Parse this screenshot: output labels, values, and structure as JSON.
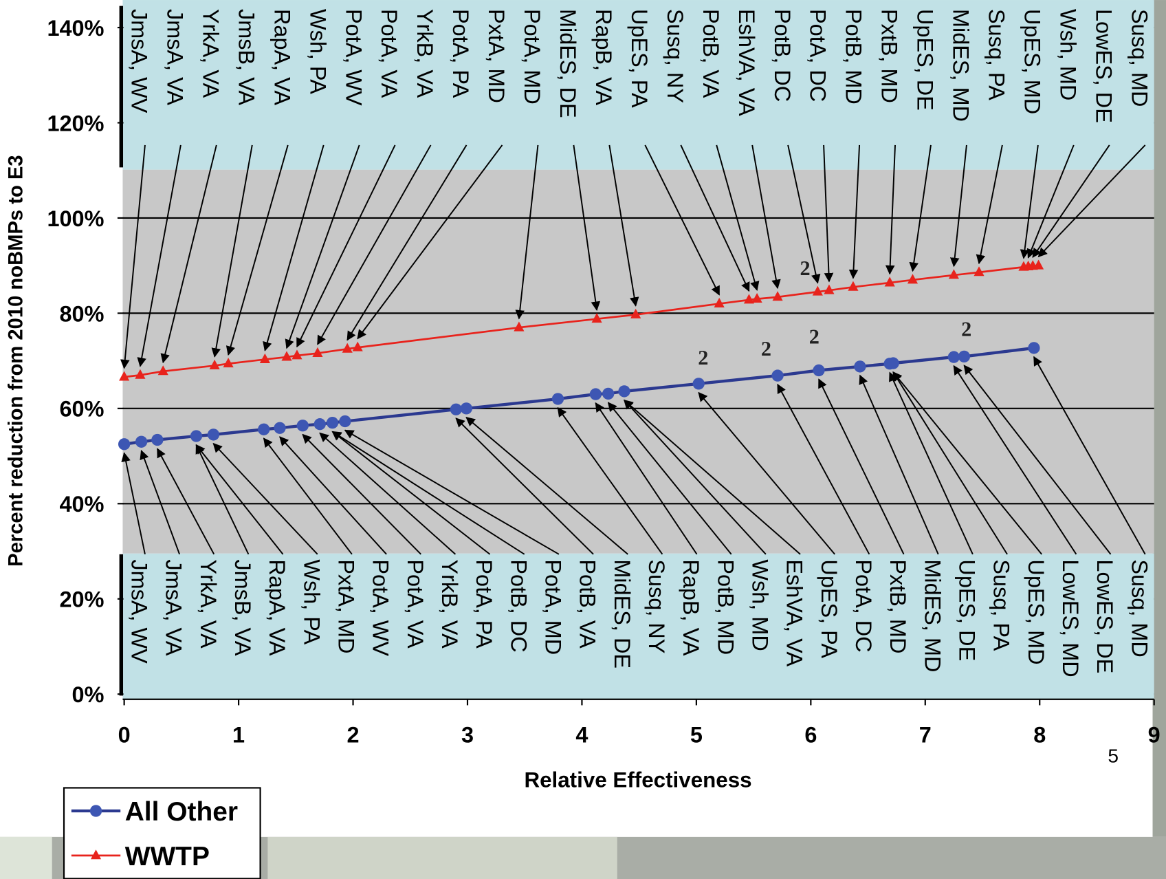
{
  "chart_data": {
    "type": "line",
    "y_label": "Percent reduction from 2010 noBMPs to E3",
    "x_label": "Relative Effectiveness",
    "xlim": [
      0,
      9
    ],
    "xticks": [
      0,
      1,
      2,
      3,
      4,
      5,
      6,
      7,
      8,
      9
    ],
    "ylim": [
      0,
      140
    ],
    "yticks": [
      {
        "value": 0,
        "label": "0%"
      },
      {
        "value": 20,
        "label": "20%"
      },
      {
        "value": 40,
        "label": "40%"
      },
      {
        "value": 60,
        "label": "60%"
      },
      {
        "value": 80,
        "label": "80%"
      },
      {
        "value": 100,
        "label": "100%"
      },
      {
        "value": 120,
        "label": "120%"
      },
      {
        "value": 140,
        "label": "140%"
      }
    ],
    "grid": true,
    "series": [
      {
        "name": "All Other",
        "color": "#2b3990",
        "marker": "circle",
        "x": [
          0,
          0.15,
          0.29,
          0.63,
          0.78,
          1.22,
          1.36,
          1.56,
          1.71,
          1.82,
          1.93,
          2.9,
          2.99,
          3.79,
          4.12,
          4.23,
          4.37,
          5.02,
          5.71,
          6.07,
          6.43,
          6.69,
          6.72,
          7.25,
          7.34,
          7.95
        ],
        "values": [
          52.5,
          53,
          53.4,
          54.2,
          54.5,
          55.6,
          55.9,
          56.4,
          56.7,
          57,
          57.3,
          59.8,
          60,
          62,
          63,
          63.1,
          63.6,
          65.2,
          66.9,
          68,
          68.8,
          69.4,
          69.5,
          70.8,
          70.9,
          72.7
        ]
      },
      {
        "name": "WWTP",
        "color": "#e8231c",
        "marker": "triangle",
        "x": [
          0,
          0.14,
          0.34,
          0.79,
          0.91,
          1.23,
          1.42,
          1.51,
          1.69,
          1.95,
          2.04,
          3.45,
          4.13,
          4.47,
          5.2,
          5.46,
          5.53,
          5.71,
          6.06,
          6.16,
          6.37,
          6.69,
          6.89,
          7.25,
          7.47,
          7.86,
          7.9,
          7.94,
          7.99
        ],
        "values": [
          66.6,
          67,
          67.8,
          69,
          69.4,
          70.3,
          70.8,
          71.1,
          71.6,
          72.5,
          72.8,
          77,
          78.8,
          79.7,
          82,
          82.8,
          83,
          83.4,
          84.5,
          84.8,
          85.5,
          86.4,
          87,
          88,
          88.6,
          89.7,
          89.8,
          89.9,
          90
        ]
      }
    ],
    "top_labels": [
      "JmsA, WV",
      "JmsA, VA",
      "YrkA, VA",
      "JmsB, VA",
      "RapA, VA",
      "Wsh, PA",
      "PotA, WV",
      "PotA, VA",
      "YrkB, VA",
      "PotA, PA",
      "PxtA, MD",
      "PotA, MD",
      "MidES, DE",
      "RapB, VA",
      "UpES, PA",
      "Susq, NY",
      "PotB, VA",
      "EshVA, VA",
      "PotB, DC",
      "PotA, DC",
      "PotB, MD",
      "PxtB, MD",
      "UpES, DE",
      "MidES, MD",
      "Susq, PA",
      "UpES, MD",
      "Wsh, MD",
      "LowES, DE",
      "Susq, MD"
    ],
    "bottom_labels": [
      "JmsA, WV",
      "JmsA, VA",
      "YrkA, VA",
      "JmsB, VA",
      "RapA, VA",
      "Wsh, PA",
      "PxtA, MD",
      "PotA, WV",
      "PotA, VA",
      "YrkB, VA",
      "PotA, PA",
      "PotB, DC",
      "PotA, MD",
      "PotB, VA",
      "MidES, DE",
      "Susq, NY",
      "RapB, VA",
      "PotB, MD",
      "Wsh, MD",
      "EshVA, VA",
      "UpES, PA",
      "PotA, DC",
      "PxtB, MD",
      "MidES, MD",
      "UpES, DE",
      "Susq, PA",
      "UpES, MD",
      "LowES, MD",
      "LowES, DE",
      "Susq, MD"
    ],
    "annotations": [
      {
        "text": "2",
        "x": 5.06,
        "y": 69.2
      },
      {
        "text": "2",
        "x": 5.61,
        "y": 71.1
      },
      {
        "text": "2",
        "x": 6.03,
        "y": 73.6
      },
      {
        "text": "2",
        "x": 7.36,
        "y": 75.2
      },
      {
        "text": "2",
        "x": 5.95,
        "y": 88
      }
    ]
  },
  "page_number": "5"
}
